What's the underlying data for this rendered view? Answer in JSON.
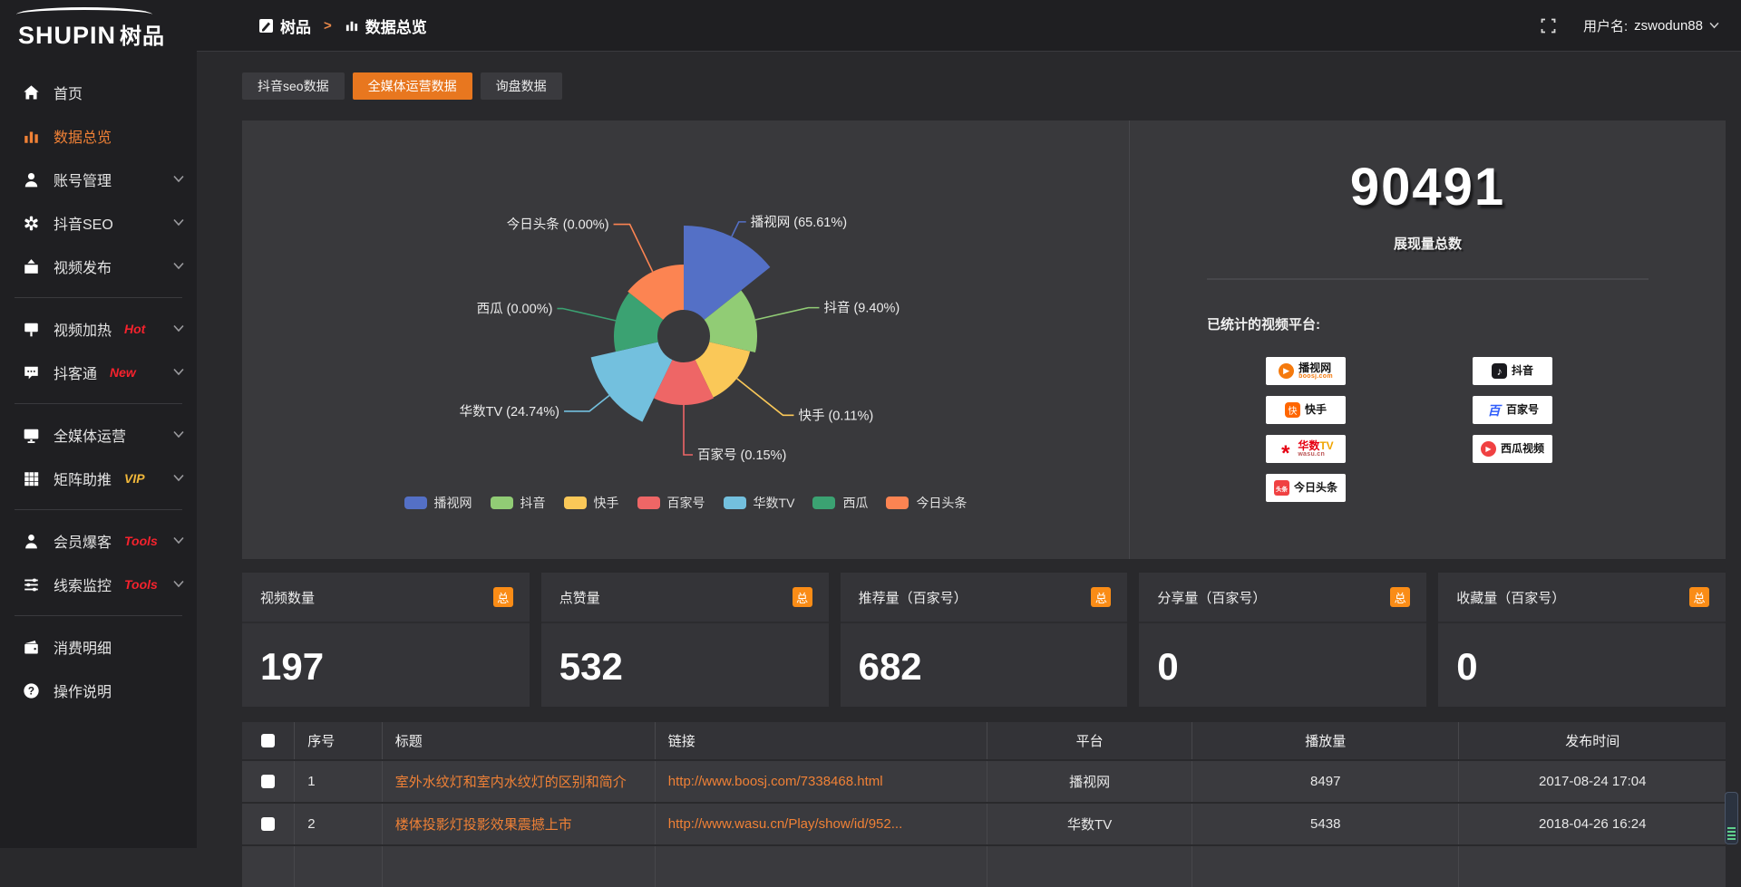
{
  "sidebar": {
    "brand": "SHUPIN",
    "brand_suffix": "树品",
    "items": [
      {
        "label": "首页",
        "icon": "home"
      },
      {
        "label": "数据总览",
        "icon": "chart",
        "active": true
      },
      {
        "label": "账号管理",
        "icon": "user",
        "chevron": true
      },
      {
        "label": "抖音SEO",
        "icon": "gear",
        "chevron": true
      },
      {
        "label": "视频发布",
        "icon": "publish",
        "chevron": true,
        "divider_after": true
      },
      {
        "label": "视频加热",
        "icon": "heat",
        "tag": "Hot",
        "tag_color": "#f5222d",
        "chevron": true
      },
      {
        "label": "抖客通",
        "icon": "chat",
        "tag": "New",
        "tag_color": "#f5222d",
        "chevron": true,
        "divider_after": true
      },
      {
        "label": "全媒体运营",
        "icon": "monitor",
        "chevron": true
      },
      {
        "label": "矩阵助推",
        "icon": "grid",
        "tag": "VIP",
        "tag_color": "#f0b73a",
        "chevron": true,
        "divider_after": true
      },
      {
        "label": "会员爆客",
        "icon": "member",
        "tag": "Tools",
        "tag_color": "#f5222d",
        "chevron": true
      },
      {
        "label": "线索监控",
        "icon": "sliders",
        "tag": "Tools",
        "tag_color": "#f5222d",
        "chevron": true,
        "divider_after": true
      },
      {
        "label": "消费明细",
        "icon": "wallet"
      },
      {
        "label": "操作说明",
        "icon": "help"
      }
    ]
  },
  "header": {
    "breadcrumb": [
      {
        "label": "树品",
        "icon": "bc-edit"
      },
      {
        "label": "数据总览",
        "icon": "bc-chart"
      }
    ],
    "user_prefix": "用户名:",
    "username": "zswodun88"
  },
  "tabs": [
    {
      "label": "抖音seo数据"
    },
    {
      "label": "全媒体运营数据",
      "active": true
    },
    {
      "label": "询盘数据"
    }
  ],
  "chart_data": {
    "type": "pie",
    "variant": "nightingale-rose",
    "title": "",
    "legend_position": "bottom",
    "label_format": "{name} ({percent}%)",
    "items": [
      {
        "name": "播视网",
        "percent": 65.61,
        "color": "#5470c6"
      },
      {
        "name": "抖音",
        "percent": 9.4,
        "color": "#91cc75"
      },
      {
        "name": "快手",
        "percent": 0.11,
        "color": "#fac858"
      },
      {
        "name": "百家号",
        "percent": 0.15,
        "color": "#ee6666"
      },
      {
        "name": "华数TV",
        "percent": 24.74,
        "color": "#73c0de"
      },
      {
        "name": "西瓜",
        "percent": 0.0,
        "color": "#3ba272"
      },
      {
        "name": "今日头条",
        "percent": 0.0,
        "color": "#fc8452"
      }
    ],
    "layout": {
      "center": [
        487,
        238
      ],
      "inner_radius": 29,
      "radii": [
        122,
        81,
        75,
        76,
        105,
        77,
        79
      ],
      "label_ext": [
        18,
        60,
        65,
        55,
        28,
        60,
        58
      ],
      "label_h": [
        8,
        12,
        12,
        10,
        -28,
        -6,
        -18
      ]
    }
  },
  "summary": {
    "total": "90491",
    "total_label": "展现量总数",
    "platforms_title": "已统计的视频平台:",
    "platforms": [
      {
        "name": "播视网",
        "sub": "boosj.com",
        "kind": "boosj",
        "color": "#f57a0d"
      },
      {
        "name": "快手",
        "kind": "kuaishou",
        "color": "#ff6600"
      },
      {
        "name": "华数TV",
        "sub": "wasu.cn",
        "kind": "wasu",
        "color": "#e60012"
      },
      {
        "name": "今日头条",
        "kind": "toutiao",
        "color": "#f04142"
      },
      {
        "name": "抖音",
        "kind": "douyin",
        "color": "#1a1a1e"
      },
      {
        "name": "百家号",
        "kind": "baijia",
        "color": "#315efb"
      },
      {
        "name": "西瓜视频",
        "kind": "xigua",
        "color": "#f04142"
      }
    ]
  },
  "stats": [
    {
      "label": "视频数量",
      "badge": "总",
      "value": "197"
    },
    {
      "label": "点赞量",
      "badge": "总",
      "value": "532"
    },
    {
      "label": "推荐量（百家号）",
      "badge": "总",
      "value": "682"
    },
    {
      "label": "分享量（百家号）",
      "badge": "总",
      "value": "0"
    },
    {
      "label": "收藏量（百家号）",
      "badge": "总",
      "value": "0"
    }
  ],
  "table": {
    "headers": [
      "序号",
      "标题",
      "链接",
      "平台",
      "播放量",
      "发布时间"
    ],
    "rows": [
      {
        "no": "1",
        "title": "室外水纹灯和室内水纹灯的区别和简介",
        "link": "http://www.boosj.com/7338468.html",
        "platform": "播视网",
        "plays": "8497",
        "time": "2017-08-24 17:04"
      },
      {
        "no": "2",
        "title": "楼体投影灯投影效果震撼上市",
        "link": "http://www.wasu.cn/Play/show/id/952...",
        "platform": "华数TV",
        "plays": "5438",
        "time": "2018-04-26 16:24"
      }
    ]
  }
}
